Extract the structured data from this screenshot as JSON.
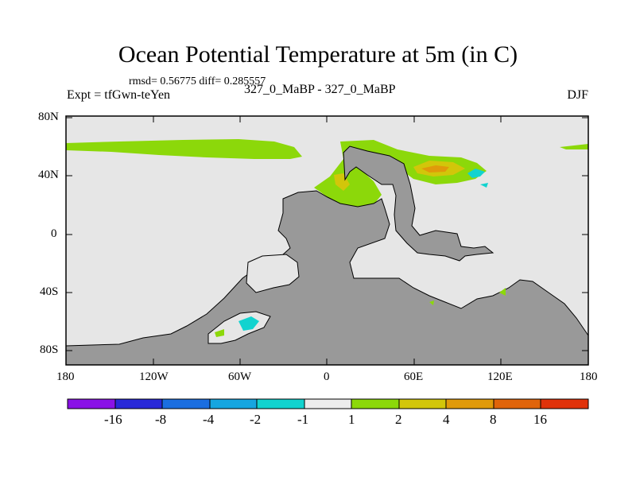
{
  "title": "Ocean Potential Temperature at 5m (in C)",
  "stats": "rmsd= 0.56775 diff= 0.285557",
  "experiment": "Expt = tfGwn-teYen",
  "comparison": "327_0_MaBP - 327_0_MaBP",
  "season": "DJF",
  "latitude_labels": [
    "80N",
    "40N",
    "0",
    "40S",
    "80S"
  ],
  "longitude_labels": [
    "180",
    "120W",
    "60W",
    "0",
    "60E",
    "120E",
    "180"
  ],
  "colorbar": {
    "labels": [
      "-16",
      "-8",
      "-4",
      "-2",
      "-1",
      "1",
      "2",
      "4",
      "8",
      "16"
    ],
    "colors": [
      "#8a12e6",
      "#2828d8",
      "#1b6ee0",
      "#16a6e0",
      "#12d3cf",
      "#ececec",
      "#8cd80a",
      "#d2c60a",
      "#e09a0a",
      "#e0640a",
      "#e0320a"
    ]
  },
  "colors": {
    "land": "#999999",
    "ocean_neutral": "#e6e6e6"
  }
}
